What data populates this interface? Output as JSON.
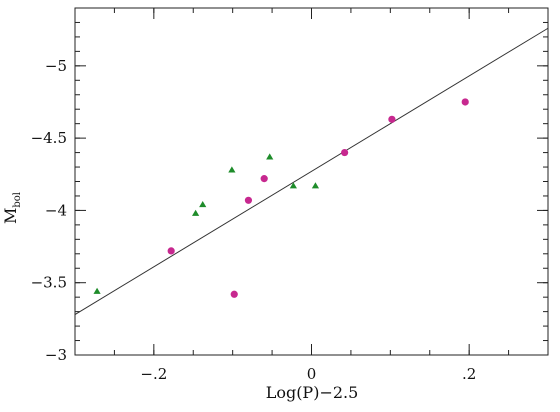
{
  "chart_data": {
    "type": "scatter",
    "xlabel": "Log(P)−2.5",
    "ylabel_main": "M",
    "ylabel_sub": "bol",
    "xlim": [
      -0.3,
      0.3
    ],
    "ylim": [
      -3.0,
      -5.4
    ],
    "x_ticks": [
      {
        "value": -0.2,
        "label": "−.2"
      },
      {
        "value": 0.0,
        "label": "0"
      },
      {
        "value": 0.2,
        "label": ".2"
      }
    ],
    "y_ticks": [
      {
        "value": -3.0,
        "label": "−3"
      },
      {
        "value": -3.5,
        "label": "−3.5"
      },
      {
        "value": -4.0,
        "label": "−4"
      },
      {
        "value": -4.5,
        "label": "−4.5"
      },
      {
        "value": -5.0,
        "label": "−5"
      }
    ],
    "x_minor_step": 0.05,
    "y_minor_step": 0.1,
    "fit_line": {
      "x": [
        -0.3,
        0.3
      ],
      "y": [
        -3.28,
        -5.26
      ],
      "color": "#333333"
    },
    "series": [
      {
        "marker": "circle",
        "color": "#c7288f",
        "points": [
          {
            "x": -0.178,
            "y": -3.72
          },
          {
            "x": -0.098,
            "y": -3.42
          },
          {
            "x": -0.08,
            "y": -4.07
          },
          {
            "x": -0.06,
            "y": -4.22
          },
          {
            "x": 0.042,
            "y": -4.4
          },
          {
            "x": 0.102,
            "y": -4.63
          },
          {
            "x": 0.195,
            "y": -4.75
          }
        ]
      },
      {
        "marker": "triangle",
        "color": "#1e8c2a",
        "points": [
          {
            "x": -0.272,
            "y": -3.44
          },
          {
            "x": -0.147,
            "y": -3.98
          },
          {
            "x": -0.138,
            "y": -4.04
          },
          {
            "x": -0.101,
            "y": -4.28
          },
          {
            "x": -0.053,
            "y": -4.37
          },
          {
            "x": -0.023,
            "y": -4.17
          },
          {
            "x": 0.005,
            "y": -4.17
          }
        ]
      }
    ]
  }
}
